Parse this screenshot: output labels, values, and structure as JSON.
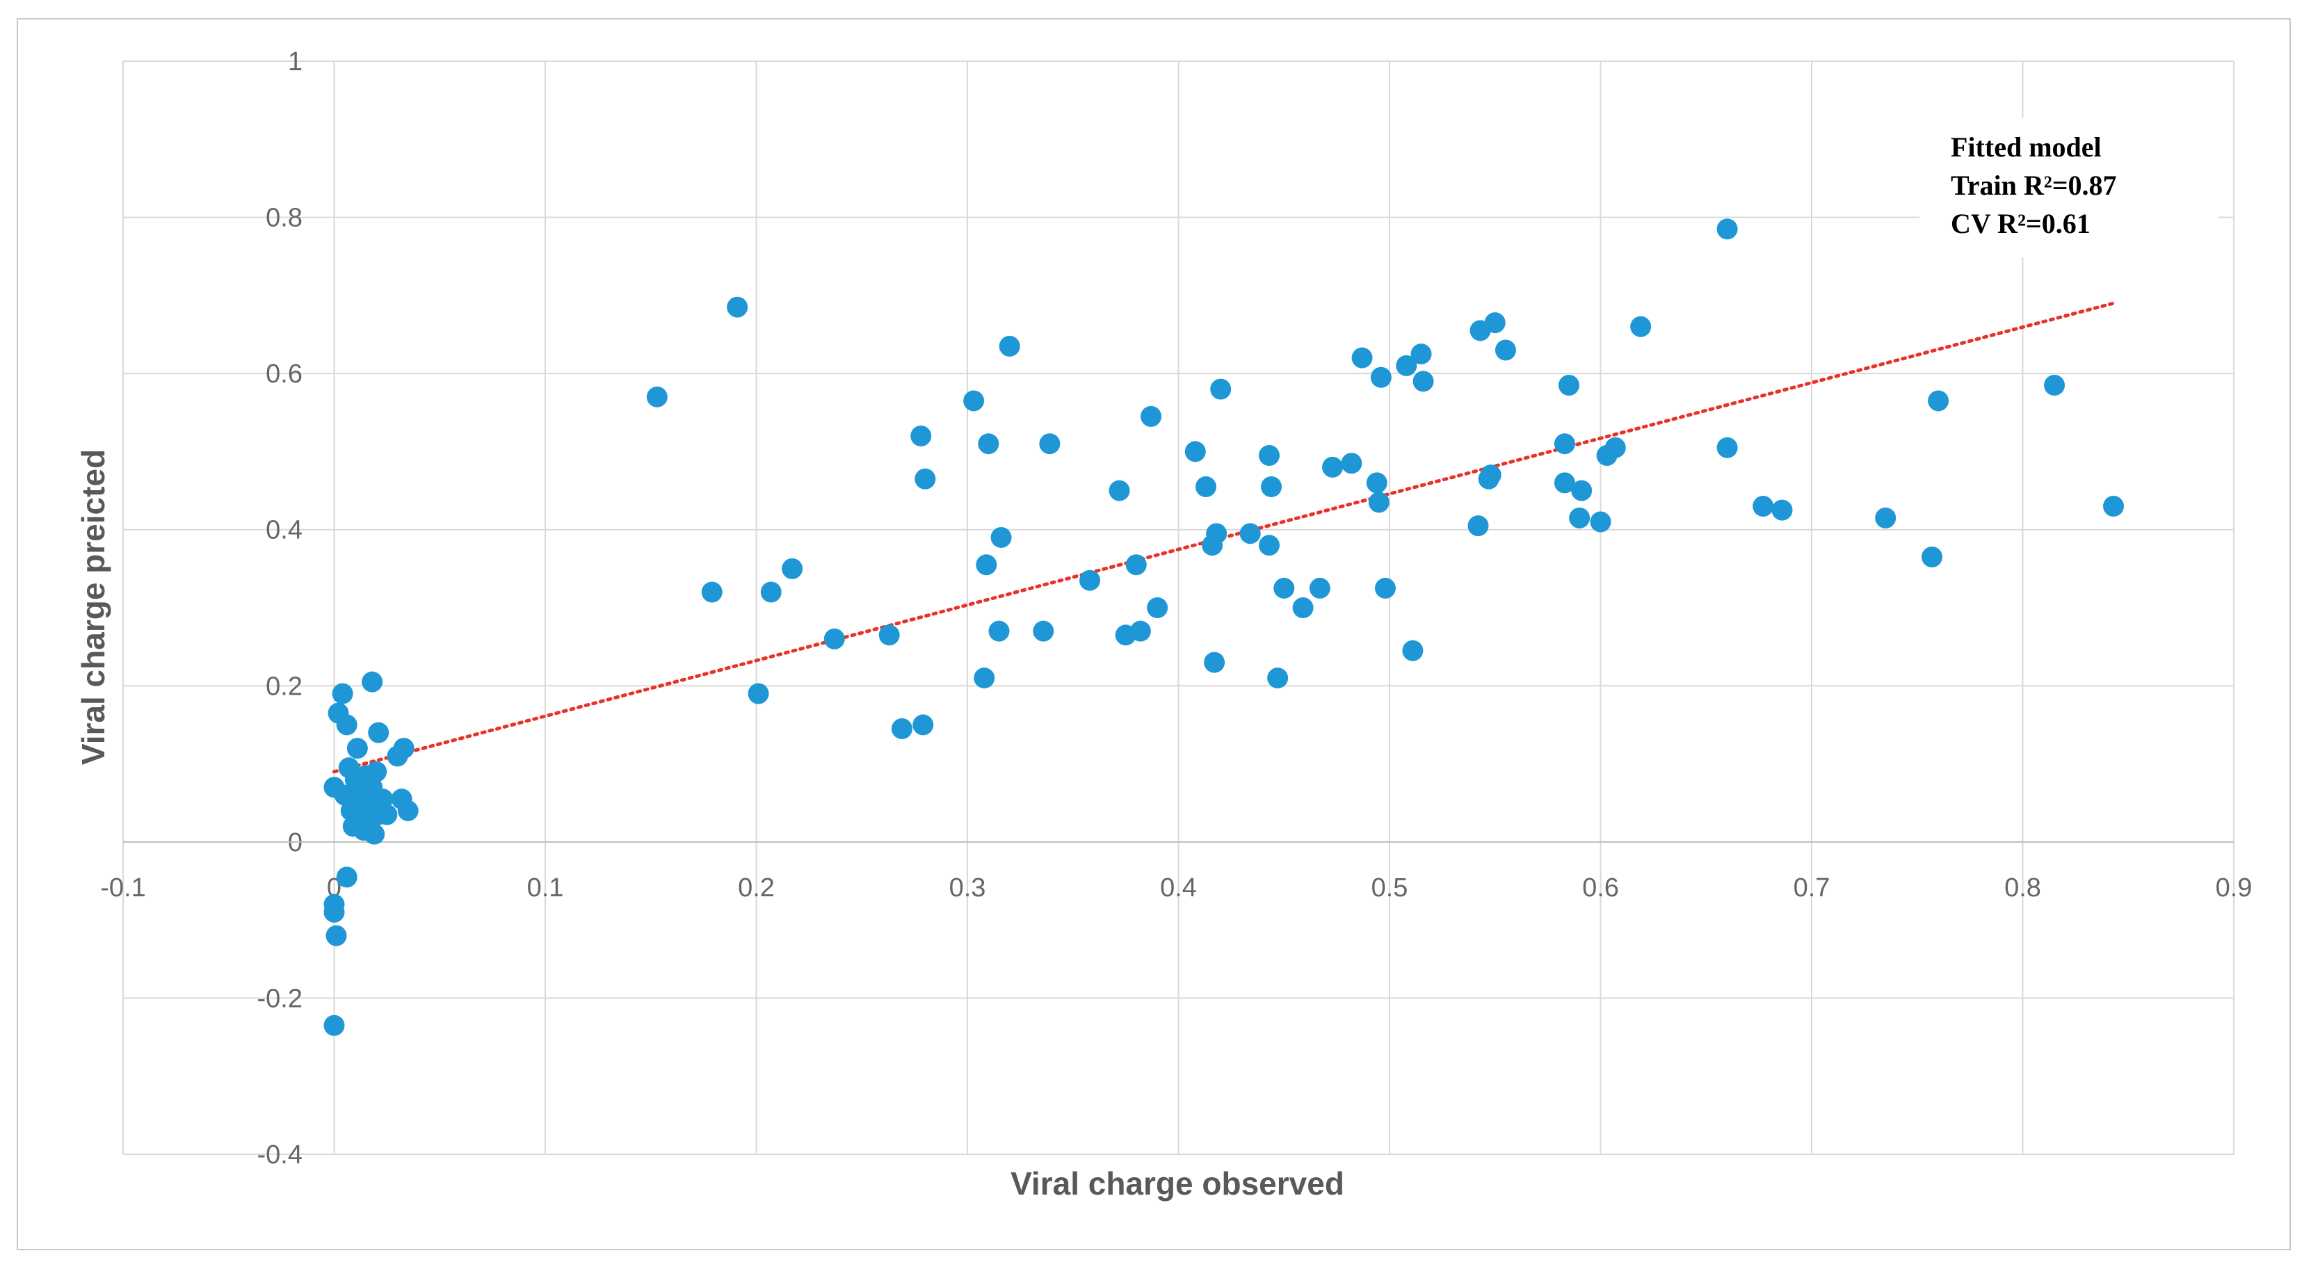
{
  "chart_data": {
    "type": "scatter",
    "xlabel": "Viral charge observed",
    "ylabel": "Viral charge preicted",
    "xlim": [
      -0.1,
      0.9
    ],
    "ylim": [
      -0.4,
      1.0
    ],
    "x_ticks": [
      "-0.1",
      "0",
      "0.1",
      "0.2",
      "0.3",
      "0.4",
      "0.5",
      "0.6",
      "0.7",
      "0.8",
      "0.9"
    ],
    "y_ticks": [
      "-0.4",
      "-0.2",
      "0",
      "0.2",
      "0.4",
      "0.6",
      "0.8",
      "1"
    ],
    "grid": true,
    "annotation": [
      "Fitted model",
      "Train R²=0.87",
      "CV R²=0.61"
    ],
    "colors": {
      "points": "#1f97d6",
      "trendline": "#e8322a",
      "grid": "#d9d9d9"
    },
    "trendline": {
      "style": "dotted",
      "x": [
        0.0,
        0.843
      ],
      "y": [
        0.09,
        0.69
      ]
    },
    "series": [
      {
        "points": [
          [
            0.0,
            0.07
          ],
          [
            0.002,
            0.165
          ],
          [
            0.004,
            0.19
          ],
          [
            0.005,
            0.06
          ],
          [
            0.006,
            0.15
          ],
          [
            0.007,
            0.095
          ],
          [
            0.008,
            0.04
          ],
          [
            0.009,
            0.02
          ],
          [
            0.01,
            0.08
          ],
          [
            0.011,
            0.045
          ],
          [
            0.012,
            0.03
          ],
          [
            0.013,
            0.06
          ],
          [
            0.014,
            0.015
          ],
          [
            0.015,
            0.085
          ],
          [
            0.016,
            0.05
          ],
          [
            0.017,
            0.025
          ],
          [
            0.018,
            0.07
          ],
          [
            0.019,
            0.01
          ],
          [
            0.02,
            0.09
          ],
          [
            0.021,
            0.035
          ],
          [
            0.0,
            -0.08
          ],
          [
            0.0,
            -0.09
          ],
          [
            0.001,
            -0.12
          ],
          [
            0.0,
            -0.235
          ],
          [
            0.006,
            -0.045
          ],
          [
            0.011,
            0.12
          ],
          [
            0.015,
            0.065
          ],
          [
            0.017,
            0.025
          ],
          [
            0.021,
            0.14
          ],
          [
            0.022,
            0.04
          ],
          [
            0.018,
            0.205
          ],
          [
            0.023,
            0.055
          ],
          [
            0.025,
            0.035
          ],
          [
            0.03,
            0.11
          ],
          [
            0.032,
            0.055
          ],
          [
            0.033,
            0.12
          ],
          [
            0.035,
            0.04
          ],
          [
            0.153,
            0.57
          ],
          [
            0.179,
            0.32
          ],
          [
            0.191,
            0.685
          ],
          [
            0.201,
            0.19
          ],
          [
            0.207,
            0.32
          ],
          [
            0.217,
            0.35
          ],
          [
            0.237,
            0.26
          ],
          [
            0.263,
            0.265
          ],
          [
            0.269,
            0.145
          ],
          [
            0.278,
            0.52
          ],
          [
            0.279,
            0.15
          ],
          [
            0.28,
            0.465
          ],
          [
            0.303,
            0.565
          ],
          [
            0.308,
            0.21
          ],
          [
            0.309,
            0.355
          ],
          [
            0.31,
            0.51
          ],
          [
            0.315,
            0.27
          ],
          [
            0.316,
            0.39
          ],
          [
            0.32,
            0.635
          ],
          [
            0.336,
            0.27
          ],
          [
            0.339,
            0.51
          ],
          [
            0.358,
            0.335
          ],
          [
            0.372,
            0.45
          ],
          [
            0.375,
            0.265
          ],
          [
            0.38,
            0.355
          ],
          [
            0.382,
            0.27
          ],
          [
            0.387,
            0.545
          ],
          [
            0.39,
            0.3
          ],
          [
            0.408,
            0.5
          ],
          [
            0.413,
            0.455
          ],
          [
            0.416,
            0.38
          ],
          [
            0.417,
            0.23
          ],
          [
            0.418,
            0.395
          ],
          [
            0.42,
            0.58
          ],
          [
            0.434,
            0.395
          ],
          [
            0.443,
            0.495
          ],
          [
            0.443,
            0.38
          ],
          [
            0.444,
            0.455
          ],
          [
            0.447,
            0.21
          ],
          [
            0.45,
            0.325
          ],
          [
            0.459,
            0.3
          ],
          [
            0.467,
            0.325
          ],
          [
            0.473,
            0.48
          ],
          [
            0.482,
            0.485
          ],
          [
            0.487,
            0.62
          ],
          [
            0.494,
            0.46
          ],
          [
            0.495,
            0.435
          ],
          [
            0.496,
            0.595
          ],
          [
            0.498,
            0.325
          ],
          [
            0.508,
            0.61
          ],
          [
            0.511,
            0.245
          ],
          [
            0.515,
            0.625
          ],
          [
            0.516,
            0.59
          ],
          [
            0.542,
            0.405
          ],
          [
            0.543,
            0.655
          ],
          [
            0.547,
            0.465
          ],
          [
            0.548,
            0.47
          ],
          [
            0.55,
            0.665
          ],
          [
            0.555,
            0.63
          ],
          [
            0.583,
            0.51
          ],
          [
            0.583,
            0.46
          ],
          [
            0.585,
            0.585
          ],
          [
            0.59,
            0.415
          ],
          [
            0.591,
            0.45
          ],
          [
            0.6,
            0.41
          ],
          [
            0.603,
            0.495
          ],
          [
            0.607,
            0.505
          ],
          [
            0.619,
            0.66
          ],
          [
            0.66,
            0.785
          ],
          [
            0.66,
            0.505
          ],
          [
            0.677,
            0.43
          ],
          [
            0.686,
            0.425
          ],
          [
            0.735,
            0.415
          ],
          [
            0.757,
            0.365
          ],
          [
            0.76,
            0.565
          ],
          [
            0.815,
            0.585
          ],
          [
            0.843,
            0.43
          ]
        ]
      }
    ]
  }
}
